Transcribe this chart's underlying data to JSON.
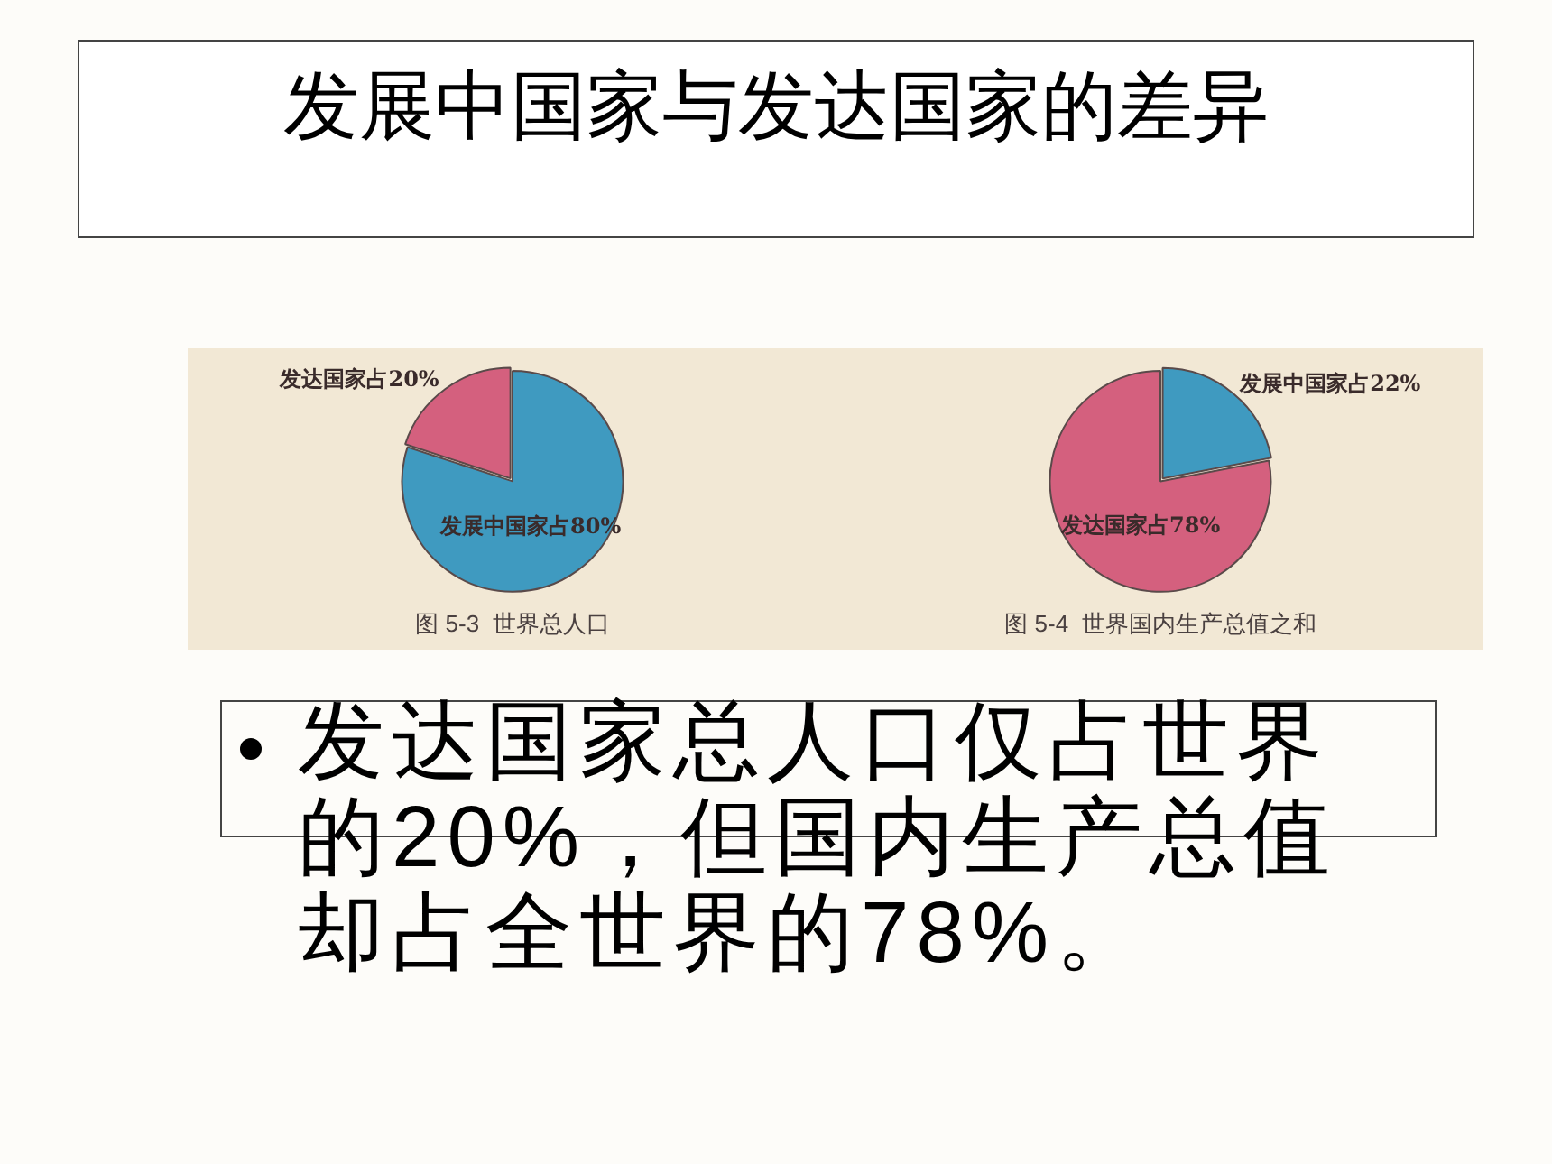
{
  "chart_data": [
    {
      "type": "other",
      "title": "发展中国家与发达国家的差异"
    },
    {
      "type": "pie",
      "title": "图 5-3  世界总人口",
      "categories": [
        "发达国家占20%",
        "发展中国家占80%"
      ],
      "values": [
        20,
        80
      ],
      "colors": [
        "#d4607e",
        "#3f9ac0"
      ]
    },
    {
      "type": "pie",
      "title": "图 5-4  世界国内生产总值之和",
      "categories": [
        "发展中国家占22%",
        "发达国家占78%"
      ],
      "values": [
        22,
        78
      ],
      "colors": [
        "#3f9ac0",
        "#d4607e"
      ]
    },
    {
      "type": "other",
      "annotations": [
        "发达国家总人口仅占世界的20%，但国内生产总值却占全世界的78%。"
      ]
    }
  ]
}
